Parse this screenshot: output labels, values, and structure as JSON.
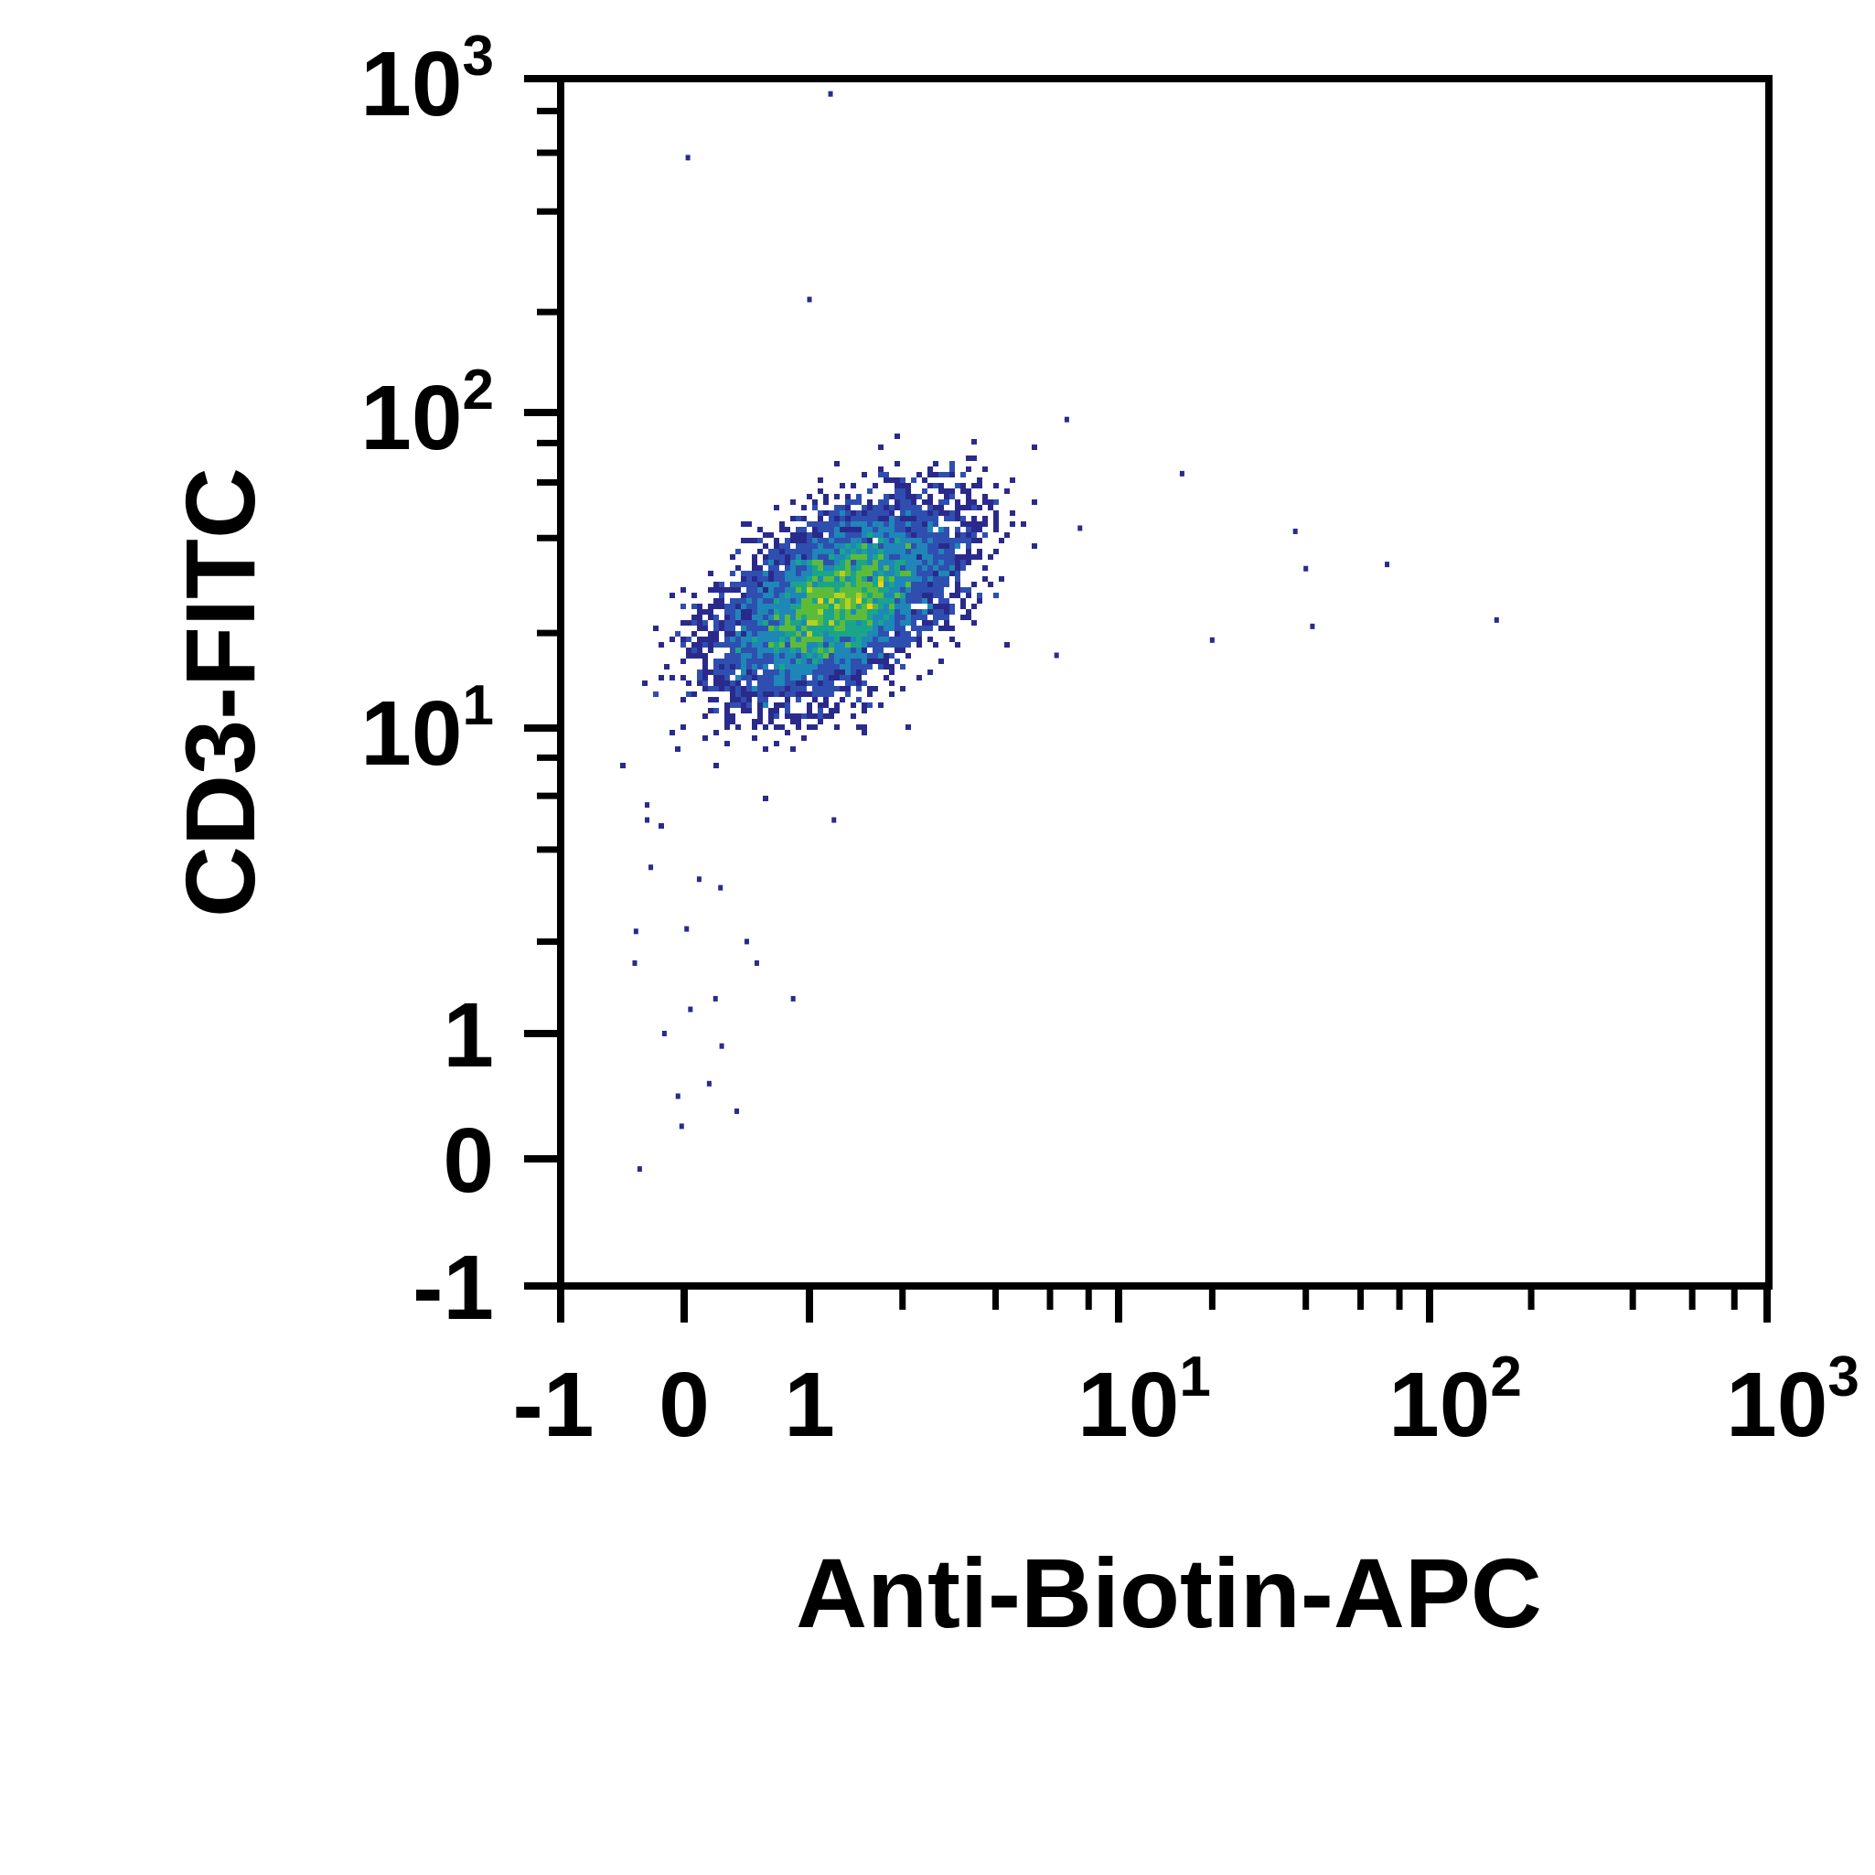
{
  "chart_data": {
    "type": "scatter",
    "subtype": "flow-cytometry density dot plot",
    "xlabel": "Anti-Biotin-APC",
    "ylabel": "CD3-FITC",
    "x_scale": "biexponential (log above 1)",
    "y_scale": "biexponential (log above 1)",
    "xlim": [
      -1,
      1000
    ],
    "ylim": [
      -1,
      1000
    ],
    "grid": false,
    "x_ticks": [
      {
        "value": -1,
        "label": "-1"
      },
      {
        "value": 0,
        "label": "0"
      },
      {
        "value": 1,
        "label": "1"
      },
      {
        "value": 10,
        "label": "10",
        "exp": "1"
      },
      {
        "value": 100,
        "label": "10",
        "exp": "2"
      },
      {
        "value": 1000,
        "label": "10",
        "exp": "3"
      }
    ],
    "y_ticks": [
      {
        "value": -1,
        "label": "-1"
      },
      {
        "value": 0,
        "label": "0"
      },
      {
        "value": 1,
        "label": "1"
      },
      {
        "value": 10,
        "label": "10",
        "exp": "1"
      },
      {
        "value": 100,
        "label": "10",
        "exp": "2"
      },
      {
        "value": 1000,
        "label": "10",
        "exp": "3"
      }
    ],
    "main_population": {
      "center": {
        "x": 1.3,
        "y": 27
      },
      "x_range": [
        -0.4,
        5
      ],
      "y_range": [
        8,
        90
      ],
      "correlation": "positive"
    },
    "sparse_points": [
      {
        "x": 1.17,
        "y": 900
      },
      {
        "x": 0.03,
        "y": 580
      },
      {
        "x": 1.0,
        "y": 218
      },
      {
        "x": 6.8,
        "y": 95
      },
      {
        "x": 16,
        "y": 64
      },
      {
        "x": 37,
        "y": 42
      },
      {
        "x": 40,
        "y": 32
      },
      {
        "x": 73,
        "y": 33
      },
      {
        "x": 158,
        "y": 22
      },
      {
        "x": 20,
        "y": 19
      },
      {
        "x": 42,
        "y": 21
      },
      {
        "x": 6.3,
        "y": 17
      },
      {
        "x": 7.5,
        "y": 43
      },
      {
        "x": 1.2,
        "y": 5.0
      },
      {
        "x": -0.36,
        "y": -0.08
      },
      {
        "x": -0.39,
        "y": 2.16
      },
      {
        "x": -0.27,
        "y": 3.5
      },
      {
        "x": -0.16,
        "y": 1.0
      },
      {
        "x": -0.02,
        "y": 0.26
      },
      {
        "x": 0.42,
        "y": 0.38
      },
      {
        "x": 0.12,
        "y": 3.2
      },
      {
        "x": 0.29,
        "y": 3.0
      },
      {
        "x": 0.58,
        "y": 1.7
      },
      {
        "x": 0.87,
        "y": 1.3
      },
      {
        "x": -0.4,
        "y": 1.7
      },
      {
        "x": 0.02,
        "y": 2.2
      },
      {
        "x": 0.05,
        "y": 1.2
      },
      {
        "x": 0.3,
        "y": 0.9
      },
      {
        "x": -0.05,
        "y": 0.5
      },
      {
        "x": 0.2,
        "y": 0.6
      },
      {
        "x": 0.25,
        "y": 1.3
      },
      {
        "x": 0.5,
        "y": 2.0
      },
      {
        "x": -0.3,
        "y": 5.0
      },
      {
        "x": -0.3,
        "y": 5.6
      }
    ],
    "colormap": [
      "#2a2a8c",
      "#2f4fb0",
      "#1f86b8",
      "#1aa58a",
      "#5cbb3a",
      "#b5d020",
      "#f2d10e",
      "#f28a10",
      "#e02020"
    ]
  }
}
